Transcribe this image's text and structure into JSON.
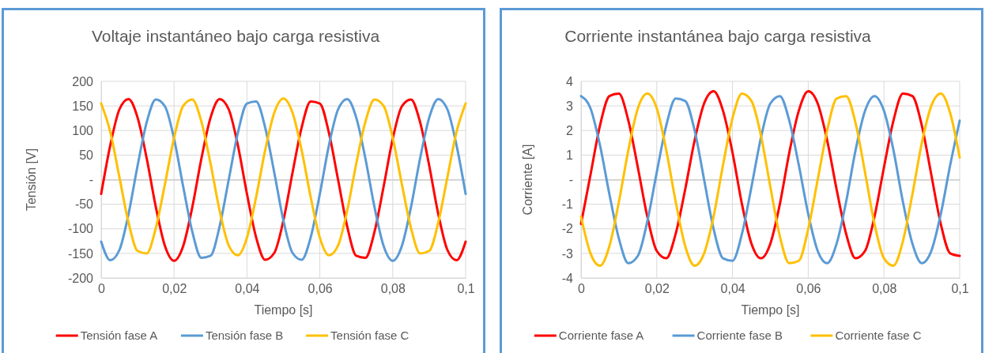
{
  "chart_data": [
    {
      "type": "line",
      "title": "Voltaje instantáneo bajo carga resistiva",
      "xlabel": "Tiempo [s]",
      "ylabel": "Tensión [V]",
      "x": [
        0,
        0.0025,
        0.005,
        0.0075,
        0.01,
        0.0125,
        0.015,
        0.0175,
        0.02,
        0.0225,
        0.025,
        0.0275,
        0.03,
        0.0325,
        0.035,
        0.0375,
        0.04,
        0.0425,
        0.045,
        0.0475,
        0.05,
        0.0525,
        0.055,
        0.0575,
        0.06,
        0.0625,
        0.065,
        0.0675,
        0.07,
        0.0725,
        0.075,
        0.0775,
        0.08,
        0.0825,
        0.085,
        0.0875,
        0.09,
        0.0925,
        0.095,
        0.0975,
        0.1
      ],
      "xlim": [
        0,
        0.1
      ],
      "xticks": [
        0,
        {
          "value": 0.02,
          "label": "0,02"
        },
        {
          "value": 0.04,
          "label": "0,04"
        },
        {
          "value": 0.06,
          "label": "0,06"
        },
        {
          "value": 0.08,
          "label": "0,08"
        },
        {
          "value": 0.1,
          "label": "0,1"
        }
      ],
      "ylim": [
        -200,
        200
      ],
      "yticks": [
        -200,
        -150,
        -100,
        -50,
        {
          "value": 0,
          "label": "-"
        },
        50,
        100,
        150,
        200
      ],
      "grid": true,
      "legend": "bottom",
      "marker": "none",
      "line_style": "solid",
      "series": [
        {
          "name": "Tensión fase A",
          "color": "#ff0000",
          "values": [
            -29,
            70,
            143,
            164,
            126,
            43,
            -56,
            -135,
            -165,
            -135,
            -56,
            43,
            126,
            164,
            143,
            70,
            -29,
            -117,
            -163,
            -149,
            -83,
            14,
            106,
            159,
            155,
            95,
            0,
            -95,
            -155,
            -159,
            -106,
            -14,
            83,
            149,
            163,
            117,
            29,
            -70,
            -143,
            -164,
            -126
          ]
        },
        {
          "name": "Tensión fase B",
          "color": "#5b9bd5",
          "values": [
            -126,
            -164,
            -143,
            -70,
            29,
            117,
            163,
            149,
            83,
            -14,
            -106,
            -159,
            -155,
            -95,
            0,
            95,
            155,
            159,
            106,
            14,
            -83,
            -149,
            -163,
            -117,
            -29,
            70,
            143,
            164,
            126,
            43,
            -56,
            -135,
            -165,
            -135,
            -56,
            43,
            126,
            164,
            143,
            70,
            -29
          ]
        },
        {
          "name": "Tensión fase C",
          "color": "#ffc000",
          "values": [
            155,
            97,
            5,
            -87,
            -145,
            -150,
            -98,
            -9,
            85,
            150,
            163,
            118,
            33,
            -63,
            -134,
            -154,
            -118,
            -36,
            60,
            136,
            165,
            136,
            60,
            -36,
            -118,
            -154,
            -134,
            -63,
            33,
            118,
            163,
            150,
            85,
            -9,
            -98,
            -150,
            -145,
            -87,
            5,
            97,
            155
          ]
        }
      ]
    },
    {
      "type": "line",
      "title": "Corriente instantánea bajo carga resistiva",
      "xlabel": "Tiempo [s]",
      "ylabel": "Corriente [A]",
      "x": [
        0,
        0.0025,
        0.005,
        0.0075,
        0.01,
        0.0125,
        0.015,
        0.0175,
        0.02,
        0.0225,
        0.025,
        0.0275,
        0.03,
        0.0325,
        0.035,
        0.0375,
        0.04,
        0.0425,
        0.045,
        0.0475,
        0.05,
        0.0525,
        0.055,
        0.0575,
        0.06,
        0.0625,
        0.065,
        0.0675,
        0.07,
        0.0725,
        0.075,
        0.0775,
        0.08,
        0.0825,
        0.085,
        0.0875,
        0.09,
        0.0925,
        0.095,
        0.0975,
        0.1
      ],
      "xlim": [
        0,
        0.1
      ],
      "xticks": [
        0,
        {
          "value": 0.02,
          "label": "0,02"
        },
        {
          "value": 0.04,
          "label": "0,04"
        },
        {
          "value": 0.06,
          "label": "0,06"
        },
        {
          "value": 0.08,
          "label": "0,08"
        },
        {
          "value": 0.1,
          "label": "0,1"
        }
      ],
      "ylim": [
        -4,
        4
      ],
      "yticks": [
        -4,
        -3,
        -2,
        -1,
        {
          "value": 0,
          "label": "-"
        },
        1,
        2,
        3,
        4
      ],
      "grid": true,
      "legend": "bottom",
      "marker": "none",
      "line_style": "solid",
      "series": [
        {
          "name": "Corriente fase A",
          "color": "#ff0000",
          "values": [
            -1.8,
            0.2,
            2.2,
            3.4,
            3.5,
            2.4,
            0.5,
            -1.5,
            -2.9,
            -3.2,
            -2.2,
            -0.4,
            1.6,
            3.1,
            3.6,
            2.8,
            1.1,
            -1,
            -2.6,
            -3.2,
            -2.6,
            -1,
            1.1,
            2.8,
            3.6,
            3.1,
            1.6,
            -0.4,
            -2.2,
            -3.2,
            -2.9,
            -1.5,
            0.5,
            2.4,
            3.5,
            3.4,
            2.2,
            0.2,
            -1.8,
            -3,
            -3.1
          ]
        },
        {
          "name": "Corriente fase B",
          "color": "#5b9bd5",
          "values": [
            3.4,
            2.9,
            1.4,
            -0.6,
            -2.4,
            -3.4,
            -3.1,
            -1.7,
            0.3,
            2.2,
            3.3,
            3.2,
            2,
            0,
            -2,
            -3.2,
            -3.3,
            -2.2,
            -0.3,
            1.7,
            3.1,
            3.4,
            2.4,
            0.6,
            -1.4,
            -2.9,
            -3.4,
            -2.6,
            -0.9,
            1.2,
            2.8,
            3.4,
            2.8,
            1.2,
            -0.9,
            -2.6,
            -3.4,
            -2.9,
            -1.4,
            0.6,
            2.4
          ]
        },
        {
          "name": "Corriente fase C",
          "color": "#ffc000",
          "values": [
            -1.5,
            -3,
            -3.5,
            -2.7,
            -0.9,
            1.2,
            2.9,
            3.5,
            2.9,
            1.2,
            -0.9,
            -2.7,
            -3.5,
            -3,
            -1.5,
            0.6,
            2.5,
            3.5,
            3.2,
            1.8,
            -0.3,
            -2.3,
            -3.4,
            -3.3,
            -2,
            0,
            2,
            3.3,
            3.4,
            2.3,
            0.3,
            -1.8,
            -3.2,
            -3.5,
            -2.5,
            -0.6,
            1.5,
            3,
            3.5,
            2.7,
            0.9
          ]
        }
      ]
    }
  ]
}
